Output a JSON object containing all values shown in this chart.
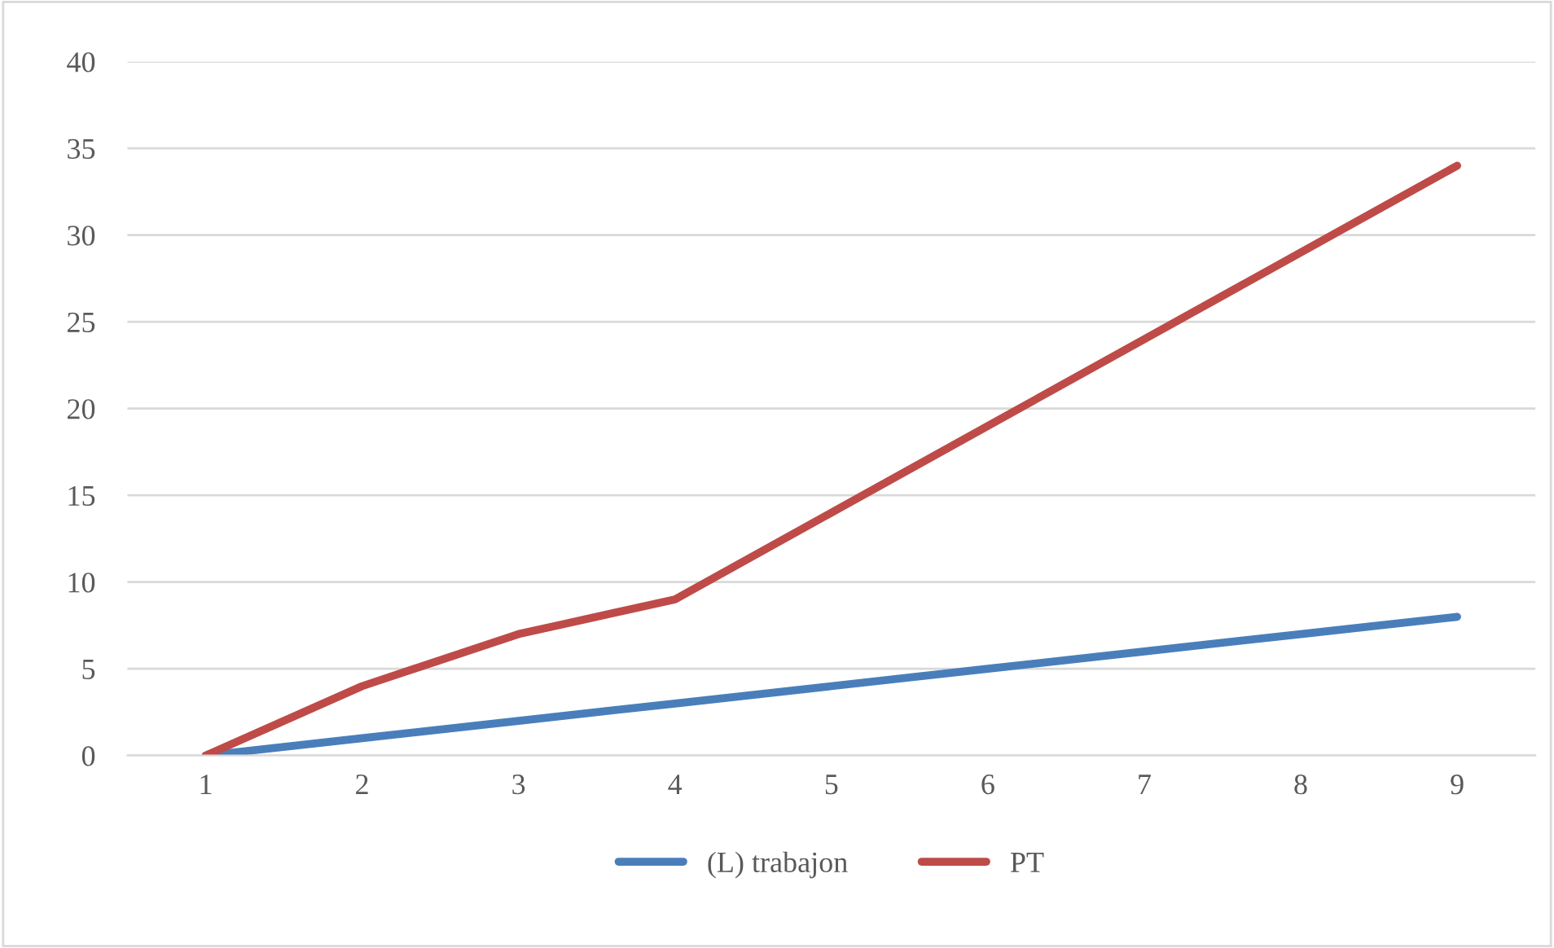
{
  "chart_data": {
    "type": "line",
    "categories": [
      "1",
      "2",
      "3",
      "4",
      "5",
      "6",
      "7",
      "8",
      "9"
    ],
    "series": [
      {
        "name": "(L) trabajon",
        "color": "#4a7ebb",
        "values": [
          0,
          1,
          2,
          3,
          4,
          5,
          6,
          7,
          8
        ]
      },
      {
        "name": "PT",
        "color": "#be4b48",
        "values": [
          0,
          4,
          7,
          9,
          14,
          19,
          24,
          29,
          34
        ]
      }
    ],
    "ylim": [
      0,
      40
    ],
    "yticks": [
      0,
      5,
      10,
      15,
      20,
      25,
      30,
      35,
      40
    ],
    "grid": "y",
    "legend": "bottom",
    "marker": "none",
    "line_style": "solid"
  }
}
